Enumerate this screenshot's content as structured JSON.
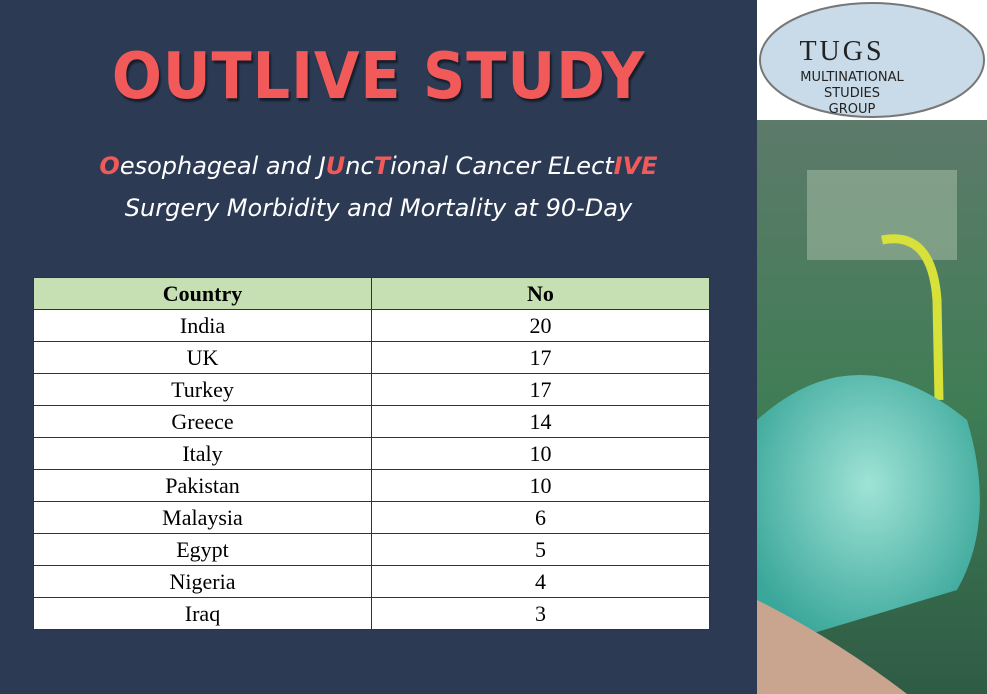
{
  "header": {
    "title": "OUTLIVE STUDY",
    "subtitle_line1": [
      {
        "text": "O",
        "highlight": true
      },
      {
        "text": "esophageal and J",
        "highlight": false
      },
      {
        "text": "U",
        "highlight": true
      },
      {
        "text": "nc",
        "highlight": false
      },
      {
        "text": "T",
        "highlight": true
      },
      {
        "text": "ional Cancer ELect",
        "highlight": false
      },
      {
        "text": "IVE",
        "highlight": true
      }
    ],
    "subtitle_line2": "Surgery Morbidity and Mortality at 90-Day"
  },
  "table": {
    "columns": [
      "Country",
      "No"
    ],
    "rows": [
      [
        "India",
        20
      ],
      [
        "UK",
        17
      ],
      [
        "Turkey",
        17
      ],
      [
        "Greece",
        14
      ],
      [
        "Italy",
        10
      ],
      [
        "Pakistan",
        10
      ],
      [
        "Malaysia",
        6
      ],
      [
        "Egypt",
        5
      ],
      [
        "Nigeria",
        4
      ],
      [
        "Iraq",
        3
      ]
    ]
  },
  "logo": {
    "acronym": "TUGS",
    "line1": "MULTINATIONAL",
    "line2": "STUDIES",
    "line3": "GROUP"
  }
}
